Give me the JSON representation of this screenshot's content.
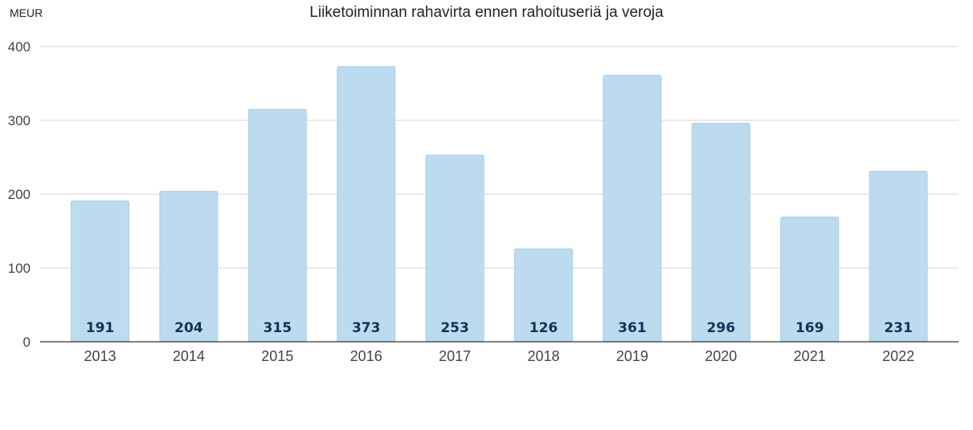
{
  "header": {
    "unit": "MEUR",
    "title": "Liiketoiminnan rahavirta ennen rahoituseriä ja veroja"
  },
  "colors": {
    "bar": "#bcdbee",
    "bar_edge": "#a9cfe7",
    "grid": "#d4d4d4",
    "axis": "#333333",
    "data_label": "#0f3557"
  },
  "chart_data": {
    "type": "bar",
    "title": "Liiketoiminnan rahavirta ennen rahoituseriä ja veroja",
    "ylabel": "MEUR",
    "xlabel": "",
    "categories": [
      "2013",
      "2014",
      "2015",
      "2016",
      "2017",
      "2018",
      "2019",
      "2020",
      "2021",
      "2022"
    ],
    "values": [
      191,
      204,
      315,
      373,
      253,
      126,
      361,
      296,
      169,
      231
    ],
    "ylim": [
      0,
      400
    ],
    "yticks": [
      0,
      100,
      200,
      300,
      400
    ],
    "grid": true,
    "legend": "none",
    "data_labels": "inside-bottom"
  }
}
